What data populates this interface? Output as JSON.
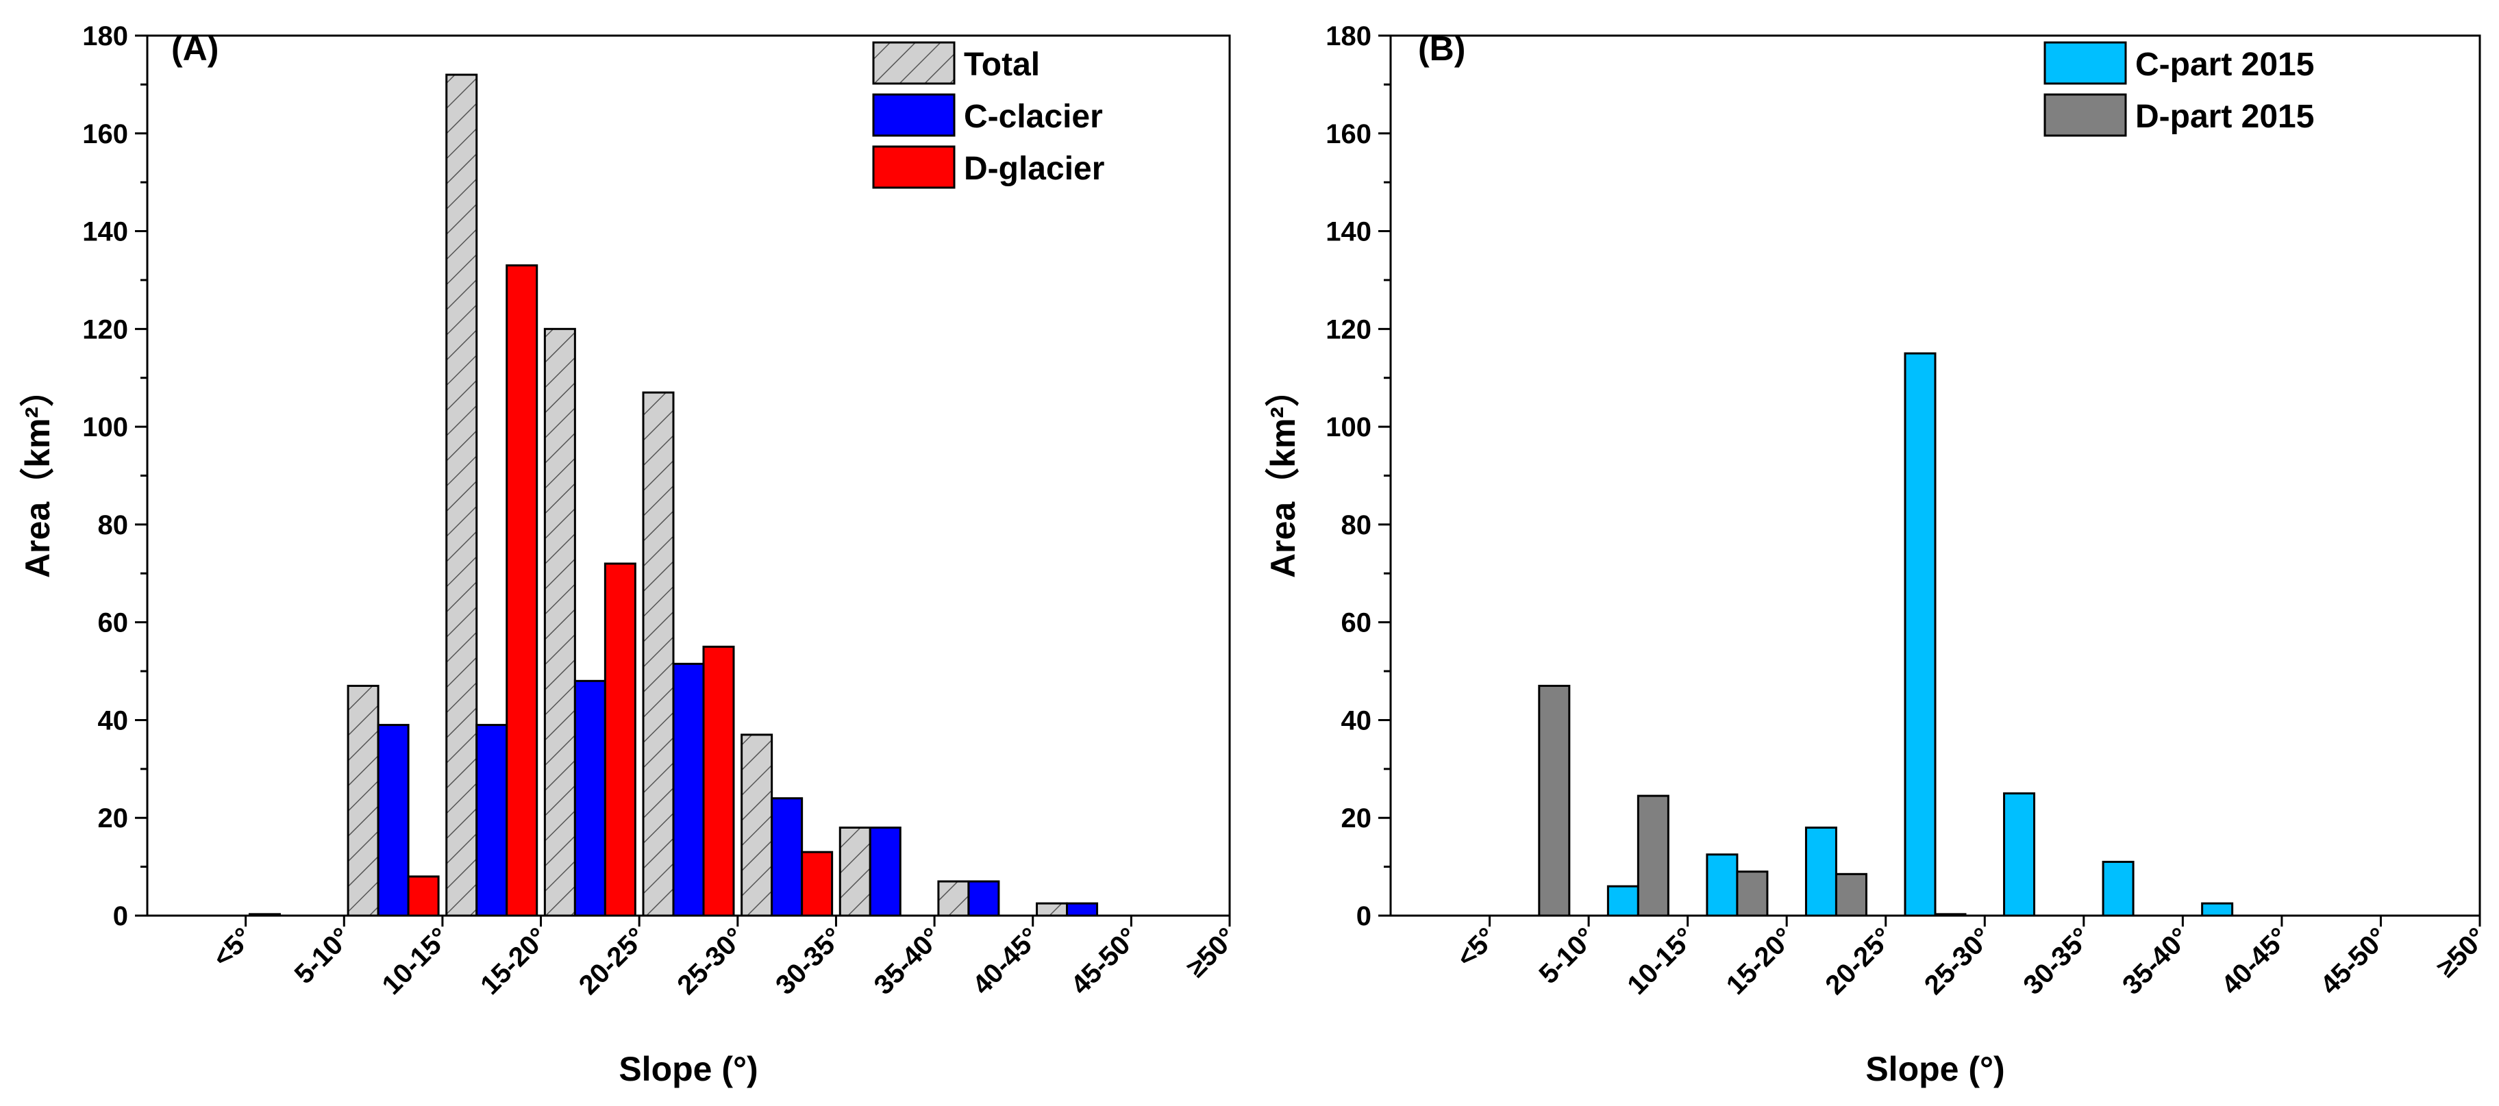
{
  "chart_data": [
    {
      "type": "bar",
      "panel_label": "(A)",
      "xlabel": "Slope (°)",
      "ylabel": "Area（km²）",
      "ylim": [
        0,
        180
      ],
      "yticks": [
        0,
        20,
        40,
        60,
        80,
        100,
        120,
        140,
        160,
        180
      ],
      "categories": [
        "<5°",
        "5-10°",
        "10-15°",
        "15-20°",
        "20-25°",
        "25-30°",
        "30-35°",
        "35-40°",
        "40-45°",
        "45-50°",
        "≥50°"
      ],
      "legend_position": "top-right",
      "series": [
        {
          "name": "Total",
          "color": "#d0d0d0",
          "pattern": "hatch",
          "values": [
            0,
            0.3,
            47,
            172,
            120,
            107,
            37,
            18,
            7,
            2.5,
            0
          ]
        },
        {
          "name": "C-clacier",
          "color": "#0000ff",
          "values": [
            0,
            0,
            39,
            39,
            48,
            51.5,
            24,
            18,
            7,
            2.5,
            0
          ]
        },
        {
          "name": "D-glacier",
          "color": "#ff0000",
          "values": [
            0,
            0,
            8,
            133,
            72,
            55,
            13,
            0,
            0,
            0,
            0
          ]
        }
      ]
    },
    {
      "type": "bar",
      "panel_label": "(B)",
      "xlabel": "Slope (°)",
      "ylabel": "Area（km²）",
      "ylim": [
        0,
        180
      ],
      "yticks": [
        0,
        20,
        40,
        60,
        80,
        100,
        120,
        140,
        160,
        180
      ],
      "categories": [
        "<5°",
        "5-10°",
        "10-15°",
        "15-20°",
        "20-25°",
        "25-30°",
        "30-35°",
        "35-40°",
        "40-45°",
        "45-50°",
        "≥50°"
      ],
      "legend_position": "top-right",
      "series": [
        {
          "name": "C-part 2015",
          "color": "#00bfff",
          "values": [
            0,
            0,
            6,
            12.5,
            18,
            115,
            25,
            11,
            2.5,
            0,
            0
          ]
        },
        {
          "name": "D-part 2015",
          "color": "#808080",
          "values": [
            0,
            47,
            24.5,
            9,
            8.5,
            0.3,
            0,
            0,
            0,
            0,
            0
          ]
        }
      ]
    }
  ]
}
